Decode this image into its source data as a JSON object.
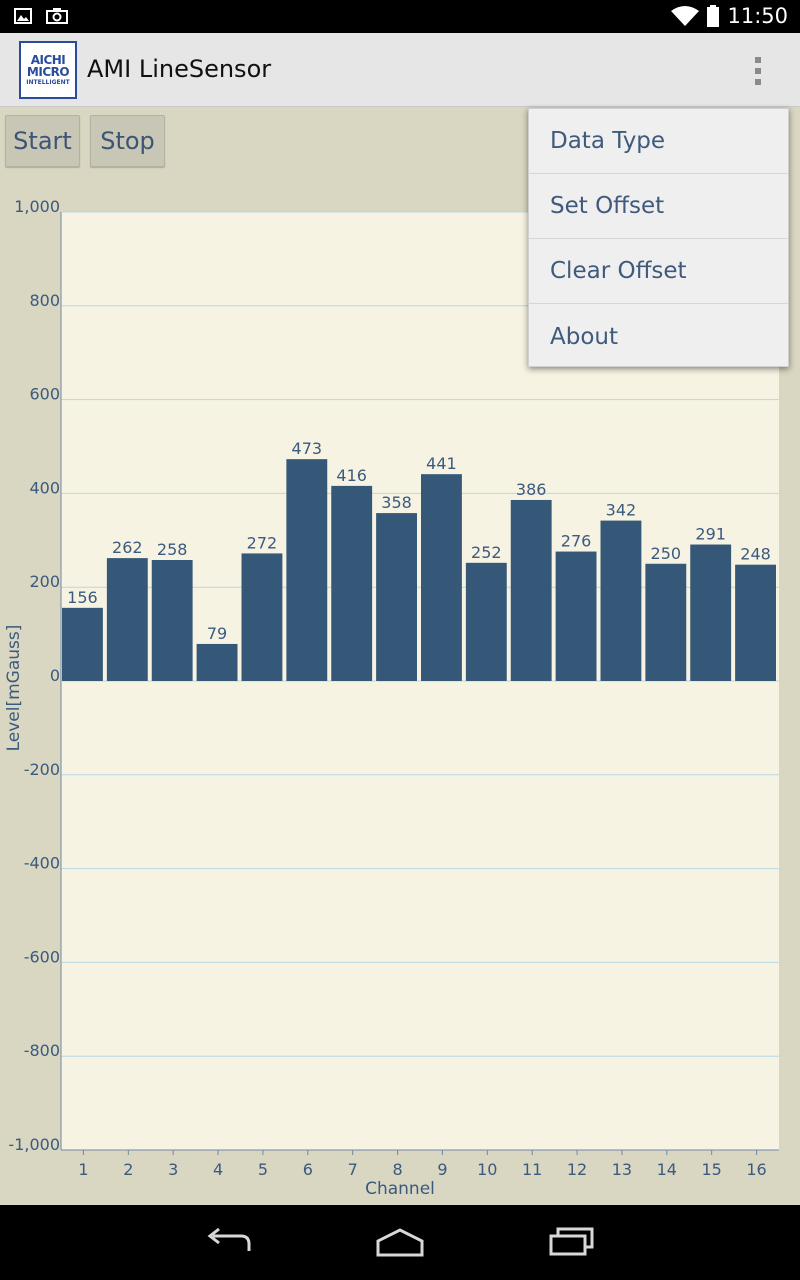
{
  "status": {
    "time": "11:50"
  },
  "app": {
    "logo_lines": [
      "AICHI",
      "MICRO",
      "INTELLIGENT"
    ],
    "title": "AMI LineSensor"
  },
  "controls": {
    "start_label": "Start",
    "stop_label": "Stop"
  },
  "menu": {
    "items": [
      "Data Type",
      "Set Offset",
      "Clear Offset",
      "About"
    ]
  },
  "chart_data": {
    "type": "bar",
    "xlabel": "Channel",
    "ylabel": "Level[mGauss]",
    "ylim": [
      -1000,
      1000
    ],
    "yticks": [
      1000,
      800,
      600,
      400,
      200,
      0,
      -200,
      -400,
      -600,
      -800,
      -1000
    ],
    "ytick_labels": [
      "1,000",
      "800",
      "600",
      "400",
      "200",
      "0",
      "-200",
      "-400",
      "-600",
      "-800",
      "-1,000"
    ],
    "categories": [
      "1",
      "2",
      "3",
      "4",
      "5",
      "6",
      "7",
      "8",
      "9",
      "10",
      "11",
      "12",
      "13",
      "14",
      "15",
      "16"
    ],
    "values": [
      156,
      262,
      258,
      79,
      272,
      473,
      416,
      358,
      441,
      252,
      386,
      276,
      342,
      250,
      291,
      248
    ],
    "grid": true,
    "colors": {
      "bar": "#355878",
      "plot_bg": "#f7f3e3",
      "grid": "#b7d8e4",
      "text": "#3b5a7f"
    }
  }
}
